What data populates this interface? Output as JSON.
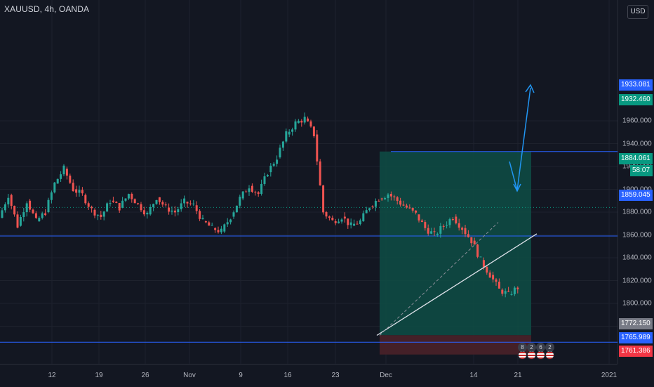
{
  "header": {
    "title": "XAUUSD, 4h, OANDA",
    "currency": "USD"
  },
  "chart_data": {
    "type": "candlestick",
    "symbol": "XAUUSD",
    "interval": "4h",
    "source": "OANDA",
    "y_ticks": [
      1780,
      1800,
      1820,
      1840,
      1860,
      1880,
      1900,
      1920,
      1940,
      1960
    ],
    "y_tick_labels": [
      "1780.000",
      "1800.000",
      "1820.000",
      "1840.000",
      "1860.000",
      "1880.000",
      "1900.000",
      "1920.000",
      "1940.000",
      "1960.000"
    ],
    "x_tick_labels": [
      "12",
      "19",
      "26",
      "Nov",
      "9",
      "16",
      "23",
      "Dec",
      "14",
      "21",
      "2021"
    ],
    "ohlc_path": [
      1875,
      1895,
      1868,
      1890,
      1872,
      1880,
      1905,
      1918,
      1900,
      1895,
      1882,
      1876,
      1890,
      1884,
      1896,
      1887,
      1878,
      1893,
      1884,
      1880,
      1889,
      1886,
      1872,
      1866,
      1863,
      1876,
      1892,
      1903,
      1896,
      1915,
      1928,
      1948,
      1958,
      1962,
      1948,
      1880,
      1872,
      1876,
      1868,
      1872,
      1885,
      1892,
      1896,
      1890,
      1884,
      1878,
      1866,
      1860,
      1868,
      1876,
      1866,
      1855,
      1838,
      1825,
      1812,
      1808,
      1814,
      1816,
      1810,
      1808,
      1782,
      1778,
      1785,
      1800,
      1820,
      1838,
      1846,
      1844,
      1840,
      1826,
      1858,
      1866,
      1862,
      1848,
      1834,
      1843,
      1838,
      1834,
      1827,
      1836,
      1845,
      1853,
      1857,
      1863,
      1872,
      1890,
      1885,
      1882
    ],
    "price_labels": [
      {
        "value": 1933.081,
        "label": "1933.081",
        "color": "#2962ff"
      },
      {
        "value": 1932.46,
        "label": "1932.460",
        "color": "#089981"
      },
      {
        "value": 1884.061,
        "label": "1884.061",
        "color": "#089981"
      },
      {
        "value": 1859.045,
        "label": "1859.045",
        "color": "#2962ff"
      },
      {
        "value": 1772.15,
        "label": "1772.150",
        "color": "#787b86"
      },
      {
        "value": 1765.989,
        "label": "1765.989",
        "color": "#2962ff"
      },
      {
        "value": 1761.386,
        "label": "1761.386",
        "color": "#f23645"
      }
    ],
    "countdown": "58:07",
    "horizontal_lines": [
      1933.081,
      1859.045,
      1765.989
    ],
    "long_position": {
      "entry": 1772.15,
      "target": 1933.081,
      "stop": 1761.386
    },
    "trendline": {
      "from": 1772,
      "to": 1866
    },
    "current_price": 1884.061,
    "events": [
      {
        "label": "8"
      },
      {
        "label": "2"
      },
      {
        "label": "6"
      },
      {
        "label": "2"
      }
    ],
    "colors": {
      "up": "#26a69a",
      "down": "#ef5350",
      "line": "#2962ff",
      "zone_profit": "#0e4d45",
      "zone_loss": "#4a2129"
    }
  }
}
